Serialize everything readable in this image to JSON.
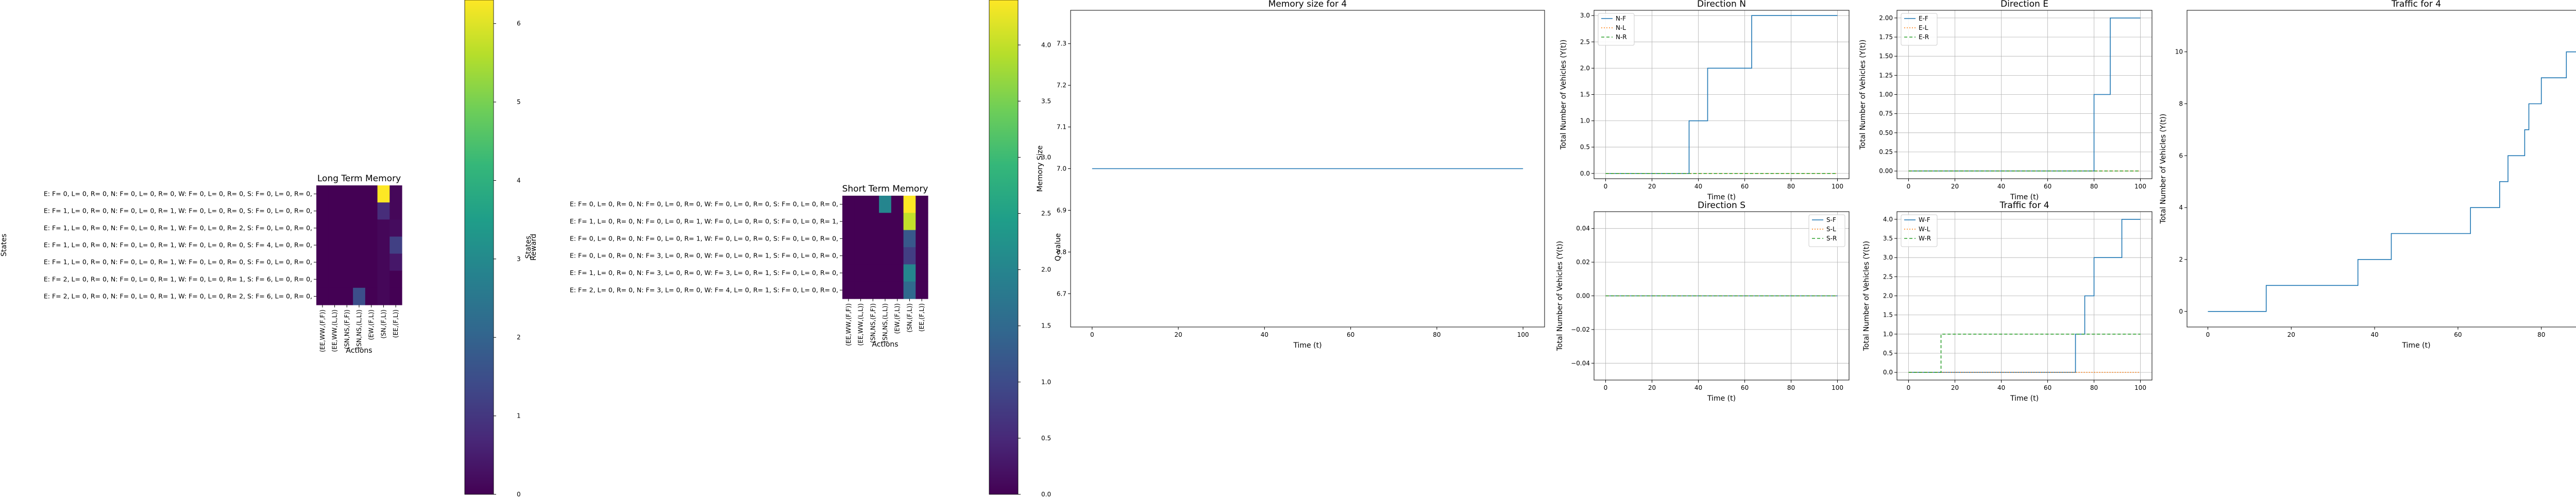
{
  "chart_data": [
    {
      "type": "heatmap",
      "title": "Long Term Memory",
      "xlabel": "Actions",
      "ylabel": "States",
      "colorbar_label": "Reward",
      "colorbar_ticks": [
        "0",
        "1",
        "2",
        "3",
        "4",
        "5",
        "6"
      ],
      "vmin": 0,
      "vmax": 6.3,
      "x_categories": [
        "(EE,WW,(F,F))",
        "(EE,WW,(L,L))",
        "(SN,NS,(F,F))",
        "(SN,NS,(L,L))",
        "(EW,(F,L))",
        "(SN,(F,L))",
        "(EE,(F,L))"
      ],
      "rows": [
        "E: F= 0, L= 0, R= 0, N: F= 0, L= 0, R= 0, W: F= 0, L= 0, R= 0, S: F= 0, L= 0, R= 0,",
        "E: F= 1, L= 0, R= 0, N: F= 0, L= 0, R= 1, W: F= 0, L= 0, R= 0, S: F= 0, L= 0, R= 0,",
        "E: F= 1, L= 0, R= 0, N: F= 0, L= 0, R= 1, W: F= 0, L= 0, R= 2, S: F= 0, L= 0, R= 0,",
        "E: F= 1, L= 0, R= 0, N: F= 0, L= 0, R= 1, W: F= 0, L= 0, R= 0, S: F= 4, L= 0, R= 0,",
        "E: F= 1, L= 0, R= 0, N: F= 0, L= 0, R= 1, W: F= 0, L= 0, R= 0, S: F= 0, L= 0, R= 0,",
        "E: F= 2, L= 0, R= 0, N: F= 0, L= 0, R= 1, W: F= 0, L= 0, R= 1, S: F= 6, L= 0, R= 0,",
        "E: F= 2, L= 0, R= 0, N: F= 0, L= 0, R= 1, W: F= 0, L= 0, R= 2, S: F= 6, L= 0, R= 0,"
      ],
      "values": [
        [
          0,
          0,
          0,
          0,
          0,
          6.3,
          0.1
        ],
        [
          0,
          0,
          0,
          0,
          0,
          0.8,
          0.1
        ],
        [
          0,
          0,
          0,
          0,
          0,
          0.1,
          0.2
        ],
        [
          0,
          0,
          0,
          0,
          0,
          0.1,
          1.2
        ],
        [
          0,
          0,
          0,
          0,
          0,
          0.1,
          0.4
        ],
        [
          0,
          0,
          0,
          0,
          0,
          0.1,
          0
        ],
        [
          0,
          0,
          0,
          1.5,
          0,
          0.1,
          0
        ]
      ]
    },
    {
      "type": "heatmap",
      "title": "Short Term Memory",
      "xlabel": "Actions",
      "ylabel": "States",
      "colorbar_label": "Q-value",
      "colorbar_ticks": [
        "0.0",
        "0.5",
        "1.0",
        "1.5",
        "2.0",
        "2.5",
        "3.0",
        "3.5",
        "4.0"
      ],
      "vmin": 0,
      "vmax": 4.4,
      "x_categories": [
        "(EE,WW,(F,F))",
        "(EE,WW,(L,L))",
        "(SN,NS,(F,F))",
        "(SN,NS,(L,L))",
        "(EW,(F,L))",
        "(SN,(F,L))",
        "(EE,(F,L))"
      ],
      "rows": [
        "E: F= 0, L= 0, R= 0, N: F= 0, L= 0, R= 0, W: F= 0, L= 0, R= 0, S: F= 0, L= 0, R= 0,",
        "E: F= 1, L= 0, R= 0, N: F= 0, L= 0, R= 1, W: F= 0, L= 0, R= 0, S: F= 0, L= 0, R= 1,",
        "E: F= 0, L= 0, R= 0, N: F= 0, L= 0, R= 1, W: F= 0, L= 0, R= 0, S: F= 0, L= 0, R= 0,",
        "E: F= 0, L= 0, R= 0, N: F= 3, L= 0, R= 0, W: F= 0, L= 0, R= 1, S: F= 0, L= 0, R= 0,",
        "E: F= 1, L= 0, R= 0, N: F= 3, L= 0, R= 0, W: F= 3, L= 0, R= 1, S: F= 0, L= 0, R= 0,",
        "E: F= 2, L= 0, R= 0, N: F= 3, L= 0, R= 0, W: F= 4, L= 0, R= 1, S: F= 0, L= 0, R= 0,"
      ],
      "values": [
        [
          0,
          0,
          0,
          2.0,
          0,
          4.4,
          0
        ],
        [
          0,
          0,
          0,
          0,
          0,
          4.0,
          0
        ],
        [
          0,
          0,
          0,
          0,
          0,
          1.2,
          0
        ],
        [
          0,
          0,
          0,
          0,
          0,
          0.8,
          0
        ],
        [
          0,
          0,
          0,
          0,
          0,
          2.0,
          0
        ],
        [
          0,
          0,
          0,
          0,
          0,
          1.5,
          0
        ]
      ]
    },
    {
      "type": "line",
      "title": "Memory size for 4",
      "xlabel": "Time (t)",
      "ylabel": "Memory Size",
      "xlim": [
        -5,
        105
      ],
      "ylim": [
        6.62,
        7.38
      ],
      "xticks": [
        0,
        20,
        40,
        60,
        80,
        100
      ],
      "yticks": [
        6.7,
        6.8,
        6.9,
        7.0,
        7.1,
        7.2,
        7.3
      ],
      "ytick_labels": [
        "6.7",
        "6.8",
        "6.9",
        "7.0",
        "7.1",
        "7.2",
        "7.3"
      ],
      "series": [
        {
          "x": [
            0,
            100
          ],
          "y": [
            7,
            7
          ],
          "color": "#1f77b4",
          "style": "solid"
        }
      ]
    },
    {
      "type": "line",
      "title": "Direction N",
      "xlabel": "Time (t)",
      "ylabel": "Total Number of Vehicles (Y(t))",
      "xlim": [
        -5,
        105
      ],
      "ylim": [
        -0.1,
        3.1
      ],
      "xticks": [
        0,
        20,
        40,
        60,
        80,
        100
      ],
      "yticks": [
        0,
        0.5,
        1,
        1.5,
        2,
        2.5,
        3
      ],
      "ytick_labels": [
        "0.0",
        "0.5",
        "1.0",
        "1.5",
        "2.0",
        "2.5",
        "3.0"
      ],
      "grid": true,
      "legend_position": "top-left",
      "series": [
        {
          "name": "N-F",
          "color": "#1f77b4",
          "style": "solid",
          "x": [
            0,
            36,
            36,
            44,
            44,
            63,
            63,
            100
          ],
          "y": [
            0,
            0,
            1,
            1,
            2,
            2,
            3,
            3
          ]
        },
        {
          "name": "N-L",
          "color": "#ff7f0e",
          "style": "dotted",
          "x": [
            0,
            100
          ],
          "y": [
            0,
            0
          ]
        },
        {
          "name": "N-R",
          "color": "#2ca02c",
          "style": "dashed",
          "x": [
            0,
            100
          ],
          "y": [
            0,
            0
          ]
        }
      ]
    },
    {
      "type": "line",
      "title": "Direction E",
      "xlabel": "Time (t)",
      "ylabel": "Total Number of Vehicles (Y(t))",
      "xlim": [
        -5,
        105
      ],
      "ylim": [
        -0.1,
        2.1
      ],
      "xticks": [
        0,
        20,
        40,
        60,
        80,
        100
      ],
      "yticks": [
        0,
        0.25,
        0.5,
        0.75,
        1,
        1.25,
        1.5,
        1.75,
        2
      ],
      "ytick_labels": [
        "0.00",
        "0.25",
        "0.50",
        "0.75",
        "1.00",
        "1.25",
        "1.50",
        "1.75",
        "2.00"
      ],
      "grid": true,
      "legend_position": "top-left",
      "series": [
        {
          "name": "E-F",
          "color": "#1f77b4",
          "style": "solid",
          "x": [
            0,
            80,
            80,
            87,
            87,
            100
          ],
          "y": [
            0,
            0,
            1,
            1,
            2,
            2
          ]
        },
        {
          "name": "E-L",
          "color": "#ff7f0e",
          "style": "dotted",
          "x": [
            0,
            100
          ],
          "y": [
            0,
            0
          ]
        },
        {
          "name": "E-R",
          "color": "#2ca02c",
          "style": "dashed",
          "x": [
            0,
            100
          ],
          "y": [
            0,
            0
          ]
        }
      ]
    },
    {
      "type": "line",
      "title": "Direction S",
      "xlabel": "Time (t)",
      "ylabel": "Total Number of Vehicles (Y(t))",
      "xlim": [
        -5,
        105
      ],
      "ylim": [
        -0.05,
        0.05
      ],
      "xticks": [
        0,
        20,
        40,
        60,
        80,
        100
      ],
      "yticks": [
        -0.04,
        -0.02,
        0,
        0.02,
        0.04
      ],
      "ytick_labels": [
        "−0.04",
        "−0.02",
        "0.00",
        "0.02",
        "0.04"
      ],
      "grid": true,
      "legend_position": "top-right",
      "series": [
        {
          "name": "S-F",
          "color": "#1f77b4",
          "style": "solid",
          "x": [
            0,
            100
          ],
          "y": [
            0,
            0
          ]
        },
        {
          "name": "S-L",
          "color": "#ff7f0e",
          "style": "dotted",
          "x": [
            0,
            100
          ],
          "y": [
            0,
            0
          ]
        },
        {
          "name": "S-R",
          "color": "#2ca02c",
          "style": "dashed",
          "x": [
            0,
            100
          ],
          "y": [
            0,
            0
          ]
        }
      ]
    },
    {
      "type": "line",
      "title": "Traffic for 4",
      "xlabel": "Time (t)",
      "ylabel": "Total Number of Vehicles (Y(t))",
      "xlim": [
        -5,
        105
      ],
      "ylim": [
        -0.2,
        4.2
      ],
      "xticks": [
        0,
        20,
        40,
        60,
        80,
        100
      ],
      "yticks": [
        0,
        0.5,
        1,
        1.5,
        2,
        2.5,
        3,
        3.5,
        4
      ],
      "ytick_labels": [
        "0.0",
        "0.5",
        "1.0",
        "1.5",
        "2.0",
        "2.5",
        "3.0",
        "3.5",
        "4.0"
      ],
      "grid": true,
      "legend_position": "top-left",
      "series": [
        {
          "name": "W-F",
          "color": "#1f77b4",
          "style": "solid",
          "x": [
            0,
            72,
            72,
            76,
            76,
            77,
            77,
            80,
            80,
            92,
            92,
            100
          ],
          "y": [
            0,
            0,
            1,
            1,
            2,
            2,
            2,
            2,
            3,
            3,
            4,
            4
          ]
        },
        {
          "name": "W-L",
          "color": "#ff7f0e",
          "style": "dotted",
          "x": [
            0,
            100
          ],
          "y": [
            0,
            0
          ]
        },
        {
          "name": "W-R",
          "color": "#2ca02c",
          "style": "dashed",
          "x": [
            0,
            14,
            14,
            100
          ],
          "y": [
            0,
            0,
            1,
            1
          ]
        }
      ]
    },
    {
      "type": "line",
      "title": "Traffic for 4",
      "xlabel": "Time (t)",
      "ylabel": "Total Number of Vehicles (Y(t))",
      "xlim": [
        -5,
        105
      ],
      "ylim": [
        -0.6,
        11.6
      ],
      "xticks": [
        0,
        20,
        40,
        60,
        80,
        100
      ],
      "yticks": [
        0,
        2,
        4,
        6,
        8,
        10
      ],
      "ytick_labels": [
        "0",
        "2",
        "4",
        "6",
        "8",
        "10"
      ],
      "series": [
        {
          "color": "#1f77b4",
          "style": "solid",
          "x": [
            0,
            14,
            14,
            36,
            36,
            44,
            44,
            63,
            63,
            70,
            70,
            72,
            72,
            76,
            76,
            77,
            77,
            80,
            80,
            86,
            86,
            92,
            92,
            100
          ],
          "y": [
            0,
            0,
            1,
            1,
            2,
            2,
            3,
            3,
            4,
            4,
            5,
            5,
            6,
            6,
            7,
            7,
            8,
            8,
            9,
            9,
            10,
            10,
            11,
            11
          ]
        }
      ]
    }
  ]
}
